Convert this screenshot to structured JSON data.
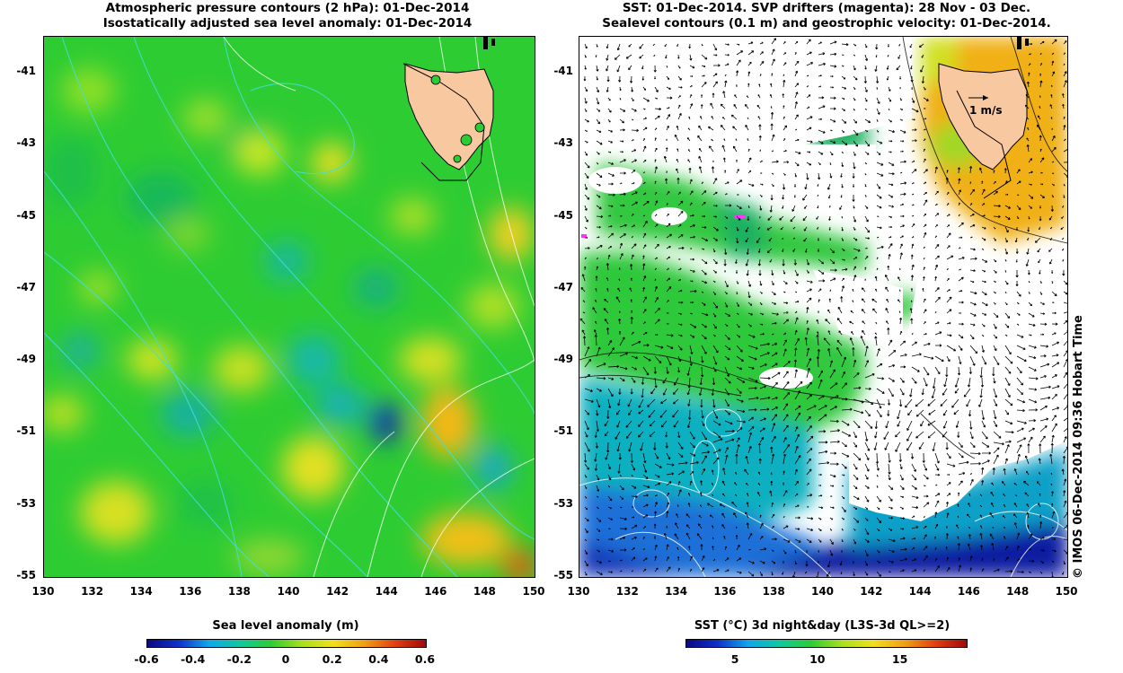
{
  "left_panel": {
    "title_line1": "Atmospheric pressure contours (2 hPa): 01-Dec-2014",
    "title_line2": "Isostatically adjusted sea level anomaly: 01-Dec-2014",
    "colorbar_title": "Sea level anomaly (m)",
    "colorbar_ticks": [
      "-0.6",
      "-0.4",
      "-0.2",
      "0",
      "0.2",
      "0.4",
      "0.6"
    ]
  },
  "right_panel": {
    "title_line1": "SST: 01-Dec-2014. SVP drifters (magenta): 28 Nov - 03 Dec.",
    "title_line2": "Sealevel contours (0.1 m) and geostrophic velocity: 01-Dec-2014.",
    "colorbar_title": "SST (°C) 3d night&day (L3S-3d QL>=2)",
    "colorbar_ticks": [
      "5",
      "10",
      "15"
    ],
    "scale_arrow_label": "1 m/s"
  },
  "axes": {
    "y_ticks": [
      "-41",
      "-43",
      "-45",
      "-47",
      "-49",
      "-51",
      "-53",
      "-55"
    ],
    "x_ticks": [
      "130",
      "132",
      "134",
      "136",
      "138",
      "140",
      "142",
      "144",
      "146",
      "148",
      "150"
    ]
  },
  "map_data": {
    "lon_range": [
      130,
      150
    ],
    "lat_range": [
      -55,
      -40
    ],
    "sla_colorbar_range": [
      -0.6,
      0.6
    ],
    "sst_colorbar_range": [
      2,
      19
    ],
    "land": "Tasmania",
    "colors": {
      "land": "#f8c8a0",
      "sla_background": "#2ecc33",
      "sst_cloud": "#ffffff",
      "drifters": "#ff33ff",
      "pressure_contours": "#44dddd"
    }
  },
  "credit": "© IMOS 06-Dec-2014 09:36 Hobart Time"
}
